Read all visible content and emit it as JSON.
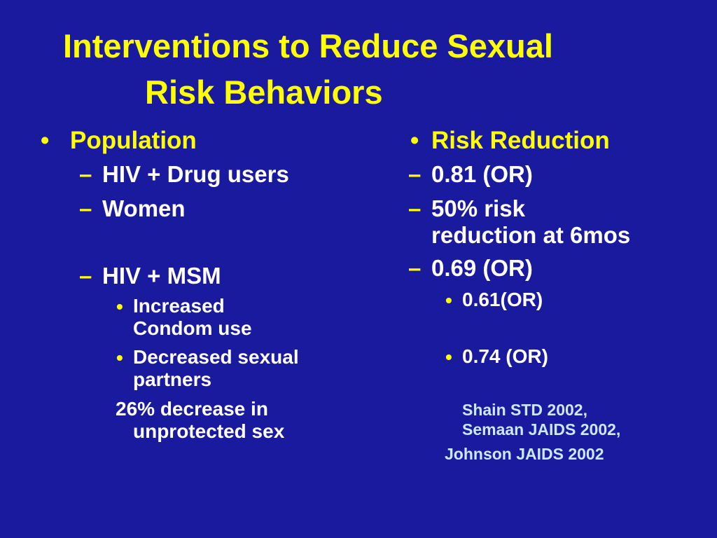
{
  "colors": {
    "background": "#1a1a9e",
    "title": "#ffff00",
    "heading": "#ffff00",
    "body": "#ffffff",
    "citation": "#cce8ff"
  },
  "title": {
    "line1": "Interventions to Reduce Sexual",
    "line2": "Risk Behaviors"
  },
  "left": {
    "heading": "Population",
    "items": [
      "HIV + Drug users",
      "Women",
      "HIV + MSM"
    ],
    "subitems": [
      {
        "line1": "Increased",
        "line2": "Condom use"
      },
      {
        "line1": "Decreased sexual",
        "line2": "partners"
      }
    ],
    "note": {
      "line1": "26% decrease in",
      "line2": "unprotected sex"
    }
  },
  "right": {
    "heading": "Risk Reduction",
    "items": [
      {
        "line1": "0.81 (OR)"
      },
      {
        "line1": "50% risk",
        "line2": "reduction at 6mos"
      },
      {
        "line1": "0.69 (OR)"
      }
    ],
    "subitems": [
      "0.61(OR)",
      "0.74 (OR)"
    ],
    "citations": {
      "line1": "Shain  STD 2002,",
      "line2": "Semaan JAIDS 2002,",
      "line3": "Johnson JAIDS 2002"
    }
  },
  "glyphs": {
    "bullet": "•",
    "dash": "–"
  }
}
